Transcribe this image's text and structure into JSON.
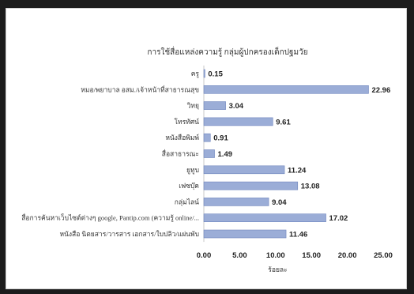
{
  "chart_data": {
    "type": "bar",
    "orientation": "horizontal",
    "title": "การใช้สื่อแหล่งความรู้ กลุ่มผู้ปกครองเด็กปฐมวัย",
    "xlabel": "ร้อยละ",
    "ylabel": "",
    "xlim": [
      0,
      25
    ],
    "ticks": [
      "0.00",
      "5.00",
      "10.00",
      "15.00",
      "20.00",
      "25.00"
    ],
    "grid": false,
    "bar_color": "#9badd7",
    "bar_edge_color": "#6f85bd",
    "categories": [
      "ครู",
      "หมอ/พยาบาล อสม./เจ้าหน้าที่สาธารณสุข",
      "วิทยุ",
      "โทรทัศน์",
      "หนังสือพิมพ์",
      "สื่อสาธารณะ",
      "ยูทูบ",
      "เฟซบุ๊ค",
      "กลุ่มไลน์",
      "สื่อการค้นหาเว็บไซต์ต่างๆ google, Pantip.com (ความรู้ online/...",
      "หนังสือ นิตยสาร/วารสาร เอกสาร/ใบปลิว/แผ่นพับ"
    ],
    "values": [
      0.15,
      22.96,
      3.04,
      9.61,
      0.91,
      1.49,
      11.24,
      13.08,
      9.04,
      17.02,
      11.46
    ],
    "value_labels": [
      "0.15",
      "22.96",
      "3.04",
      "9.61",
      "0.91",
      "1.49",
      "11.24",
      "13.08",
      "9.04",
      "17.02",
      "11.46"
    ]
  }
}
